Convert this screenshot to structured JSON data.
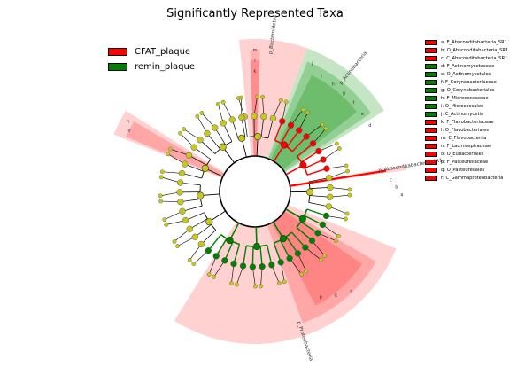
{
  "title": "Significantly Represented Taxa",
  "legend": [
    {
      "label": "CFAT_plaque",
      "color": "#ff0000"
    },
    {
      "label": "remin_plaque",
      "color": "#008000"
    }
  ],
  "key": [
    {
      "text": "a: F_Absconditabacteria_SR1",
      "color": "#ff0000"
    },
    {
      "text": "b: O_Absconditabacteria_SR1",
      "color": "#ff0000"
    },
    {
      "text": "c: C_Absconditabacteria_SR1",
      "color": "#ff0000"
    },
    {
      "text": "d: F_Actinomycetaceae",
      "color": "#008000"
    },
    {
      "text": "e: O_Actinomycetales",
      "color": "#008000"
    },
    {
      "text": "f: F_Corynebacteriaceae",
      "color": "#008000"
    },
    {
      "text": "g: O_Corynebacteriales",
      "color": "#008000"
    },
    {
      "text": "h: F_Micrococcaceae",
      "color": "#008000"
    },
    {
      "text": "i: O_Micrococcales",
      "color": "#008000"
    },
    {
      "text": "j: C_Actinomycetia",
      "color": "#008000"
    },
    {
      "text": "k: F_Flavobacteriaceae",
      "color": "#ff0000"
    },
    {
      "text": "l: O_Flavobacteriales",
      "color": "#ff0000"
    },
    {
      "text": "m: C_Flavobacteriia",
      "color": "#ff0000"
    },
    {
      "text": "n: F_Lachnospiraceae",
      "color": "#ff0000"
    },
    {
      "text": "o: O_Eubacteriales",
      "color": "#ff0000"
    },
    {
      "text": "p: F_Pasteurellaceae",
      "color": "#ff0000"
    },
    {
      "text": "q: O_Pasteurellales",
      "color": "#ff0000"
    },
    {
      "text": "r: C_Gammaproteobacteria",
      "color": "#ff0000"
    }
  ],
  "sectors": [
    {
      "label": "p_Bacteroidetes",
      "class": "CFAT_plaque"
    },
    {
      "label": "p_Actinobacteria",
      "class": "remin_plaque"
    },
    {
      "label": "p_Absconditabacteria_SR1",
      "class": "CFAT_plaque"
    },
    {
      "label": "p_Proteobacteria",
      "class": "CFAT_plaque"
    }
  ],
  "inner_letters": [
    {
      "text": "m"
    },
    {
      "text": "l"
    },
    {
      "text": "k"
    },
    {
      "text": "j"
    },
    {
      "text": "i"
    },
    {
      "text": "h"
    },
    {
      "text": "g"
    },
    {
      "text": "f"
    },
    {
      "text": "e"
    },
    {
      "text": "d"
    },
    {
      "text": "c"
    },
    {
      "text": "b"
    },
    {
      "text": "a"
    },
    {
      "text": "r"
    },
    {
      "text": "q"
    },
    {
      "text": "p"
    },
    {
      "text": "o"
    },
    {
      "text": "n"
    }
  ],
  "colors": {
    "cfat": "#ff0000",
    "remin": "#008000",
    "cfat_fill": "#ffb3b3",
    "remin_fill": "#9fd49f",
    "node": "#c8c81a",
    "line": "#000000"
  },
  "node_colors": {
    "default": "#c8c81a",
    "cfat": "#ff0000",
    "remin": "#008000"
  }
}
